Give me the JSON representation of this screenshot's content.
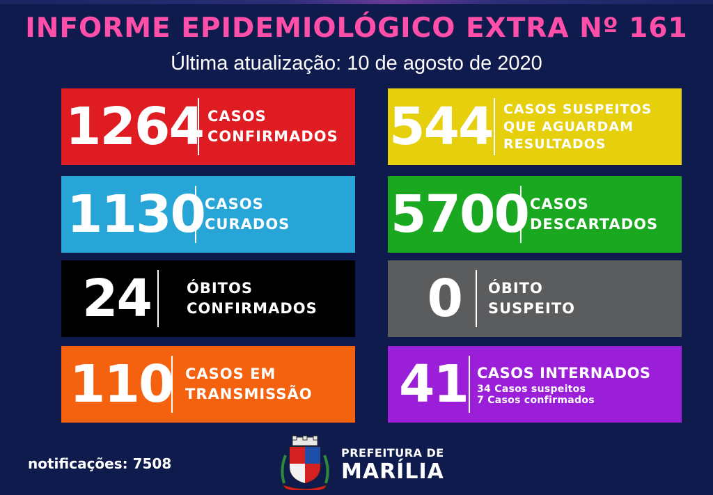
{
  "header": {
    "title": "INFORME EPIDEMIOLÓGICO EXTRA Nº 161",
    "subtitle": "Última atualização: 10 de agosto de 2020"
  },
  "cards": [
    {
      "value": "1264",
      "label_lines": [
        "CASOS",
        "CONFIRMADOS"
      ],
      "color": "#e01c23"
    },
    {
      "value": "544",
      "label_lines": [
        "CASOS SUSPEITOS",
        "QUE AGUARDAM",
        "RESULTADOS"
      ],
      "color": "#e6cf0c"
    },
    {
      "value": "1130",
      "label_lines": [
        "CASOS",
        "CURADOS"
      ],
      "color": "#27a5d6"
    },
    {
      "value": "5700",
      "label_lines": [
        "CASOS",
        "DESCARTADOS"
      ],
      "color": "#19a81f"
    },
    {
      "value": "24",
      "label_lines": [
        "ÓBITOS",
        "CONFIRMADOS"
      ],
      "color": "#000000"
    },
    {
      "value": "0",
      "label_lines": [
        "ÓBITO",
        "SUSPEITO"
      ],
      "color": "#5a5c5e"
    },
    {
      "value": "110",
      "label_lines": [
        "CASOS EM",
        "TRANSMISSÃO"
      ],
      "color": "#f5620f"
    },
    {
      "value": "41",
      "label_lines": [
        "CASOS INTERNADOS"
      ],
      "sub_lines": [
        "34 Casos suspeitos",
        "7 Casos confirmados"
      ],
      "color": "#9b1fd8"
    }
  ],
  "footer": {
    "notifications": "notificações: 7508",
    "logo_line1": "PREFEITURA DE",
    "logo_line2": "MARÍLIA"
  }
}
